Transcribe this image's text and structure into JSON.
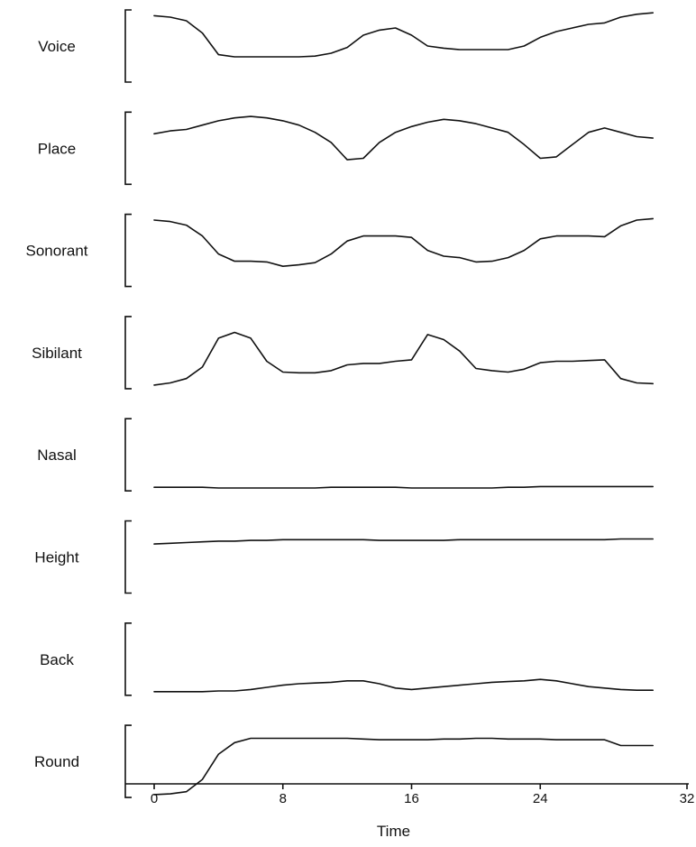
{
  "chart_data": {
    "type": "line",
    "xlabel": "Time",
    "x": [
      0,
      1,
      2,
      3,
      4,
      5,
      6,
      7,
      8,
      9,
      10,
      11,
      12,
      13,
      14,
      15,
      16,
      17,
      18,
      19,
      20,
      21,
      22,
      23,
      24,
      25,
      26,
      27,
      28,
      29,
      30,
      31
    ],
    "xlim": [
      0,
      32
    ],
    "xticks": [
      0,
      8,
      16,
      24,
      32
    ],
    "ylim": [
      0,
      1
    ],
    "grid": false,
    "series": [
      {
        "name": "Voice",
        "values": [
          0.92,
          0.9,
          0.85,
          0.68,
          0.38,
          0.35,
          0.35,
          0.35,
          0.35,
          0.35,
          0.36,
          0.4,
          0.48,
          0.65,
          0.72,
          0.75,
          0.65,
          0.5,
          0.47,
          0.45,
          0.45,
          0.45,
          0.45,
          0.5,
          0.62,
          0.7,
          0.75,
          0.8,
          0.82,
          0.9,
          0.94,
          0.96
        ]
      },
      {
        "name": "Place",
        "values": [
          0.7,
          0.74,
          0.76,
          0.82,
          0.88,
          0.92,
          0.94,
          0.92,
          0.88,
          0.82,
          0.72,
          0.58,
          0.34,
          0.36,
          0.58,
          0.72,
          0.8,
          0.86,
          0.9,
          0.88,
          0.84,
          0.78,
          0.72,
          0.55,
          0.36,
          0.38,
          0.55,
          0.72,
          0.78,
          0.72,
          0.66,
          0.64
        ]
      },
      {
        "name": "Sonorant",
        "values": [
          0.92,
          0.9,
          0.85,
          0.7,
          0.45,
          0.35,
          0.35,
          0.34,
          0.28,
          0.3,
          0.33,
          0.45,
          0.63,
          0.7,
          0.7,
          0.7,
          0.68,
          0.5,
          0.42,
          0.4,
          0.34,
          0.35,
          0.4,
          0.5,
          0.66,
          0.7,
          0.7,
          0.7,
          0.69,
          0.84,
          0.92,
          0.94
        ]
      },
      {
        "name": "Sibilant",
        "values": [
          0.05,
          0.08,
          0.14,
          0.3,
          0.7,
          0.78,
          0.7,
          0.38,
          0.23,
          0.22,
          0.22,
          0.25,
          0.33,
          0.35,
          0.35,
          0.38,
          0.4,
          0.75,
          0.68,
          0.52,
          0.28,
          0.25,
          0.23,
          0.27,
          0.36,
          0.38,
          0.38,
          0.39,
          0.4,
          0.14,
          0.08,
          0.07
        ]
      },
      {
        "name": "Nasal",
        "values": [
          0.05,
          0.05,
          0.05,
          0.05,
          0.04,
          0.04,
          0.04,
          0.04,
          0.04,
          0.04,
          0.04,
          0.05,
          0.05,
          0.05,
          0.05,
          0.05,
          0.04,
          0.04,
          0.04,
          0.04,
          0.04,
          0.04,
          0.05,
          0.05,
          0.06,
          0.06,
          0.06,
          0.06,
          0.06,
          0.06,
          0.06,
          0.06
        ]
      },
      {
        "name": "Height",
        "values": [
          0.68,
          0.69,
          0.7,
          0.71,
          0.72,
          0.72,
          0.73,
          0.73,
          0.74,
          0.74,
          0.74,
          0.74,
          0.74,
          0.74,
          0.73,
          0.73,
          0.73,
          0.73,
          0.73,
          0.74,
          0.74,
          0.74,
          0.74,
          0.74,
          0.74,
          0.74,
          0.74,
          0.74,
          0.74,
          0.75,
          0.75,
          0.75
        ]
      },
      {
        "name": "Back",
        "values": [
          0.05,
          0.05,
          0.05,
          0.05,
          0.06,
          0.06,
          0.08,
          0.11,
          0.14,
          0.16,
          0.17,
          0.18,
          0.2,
          0.2,
          0.16,
          0.1,
          0.08,
          0.1,
          0.12,
          0.14,
          0.16,
          0.18,
          0.19,
          0.2,
          0.22,
          0.2,
          0.16,
          0.12,
          0.1,
          0.08,
          0.07,
          0.07
        ]
      },
      {
        "name": "Round",
        "values": [
          0.04,
          0.05,
          0.08,
          0.25,
          0.6,
          0.76,
          0.82,
          0.82,
          0.82,
          0.82,
          0.82,
          0.82,
          0.82,
          0.81,
          0.8,
          0.8,
          0.8,
          0.8,
          0.81,
          0.81,
          0.82,
          0.82,
          0.81,
          0.81,
          0.81,
          0.8,
          0.8,
          0.8,
          0.8,
          0.72,
          0.72,
          0.72
        ]
      }
    ]
  }
}
